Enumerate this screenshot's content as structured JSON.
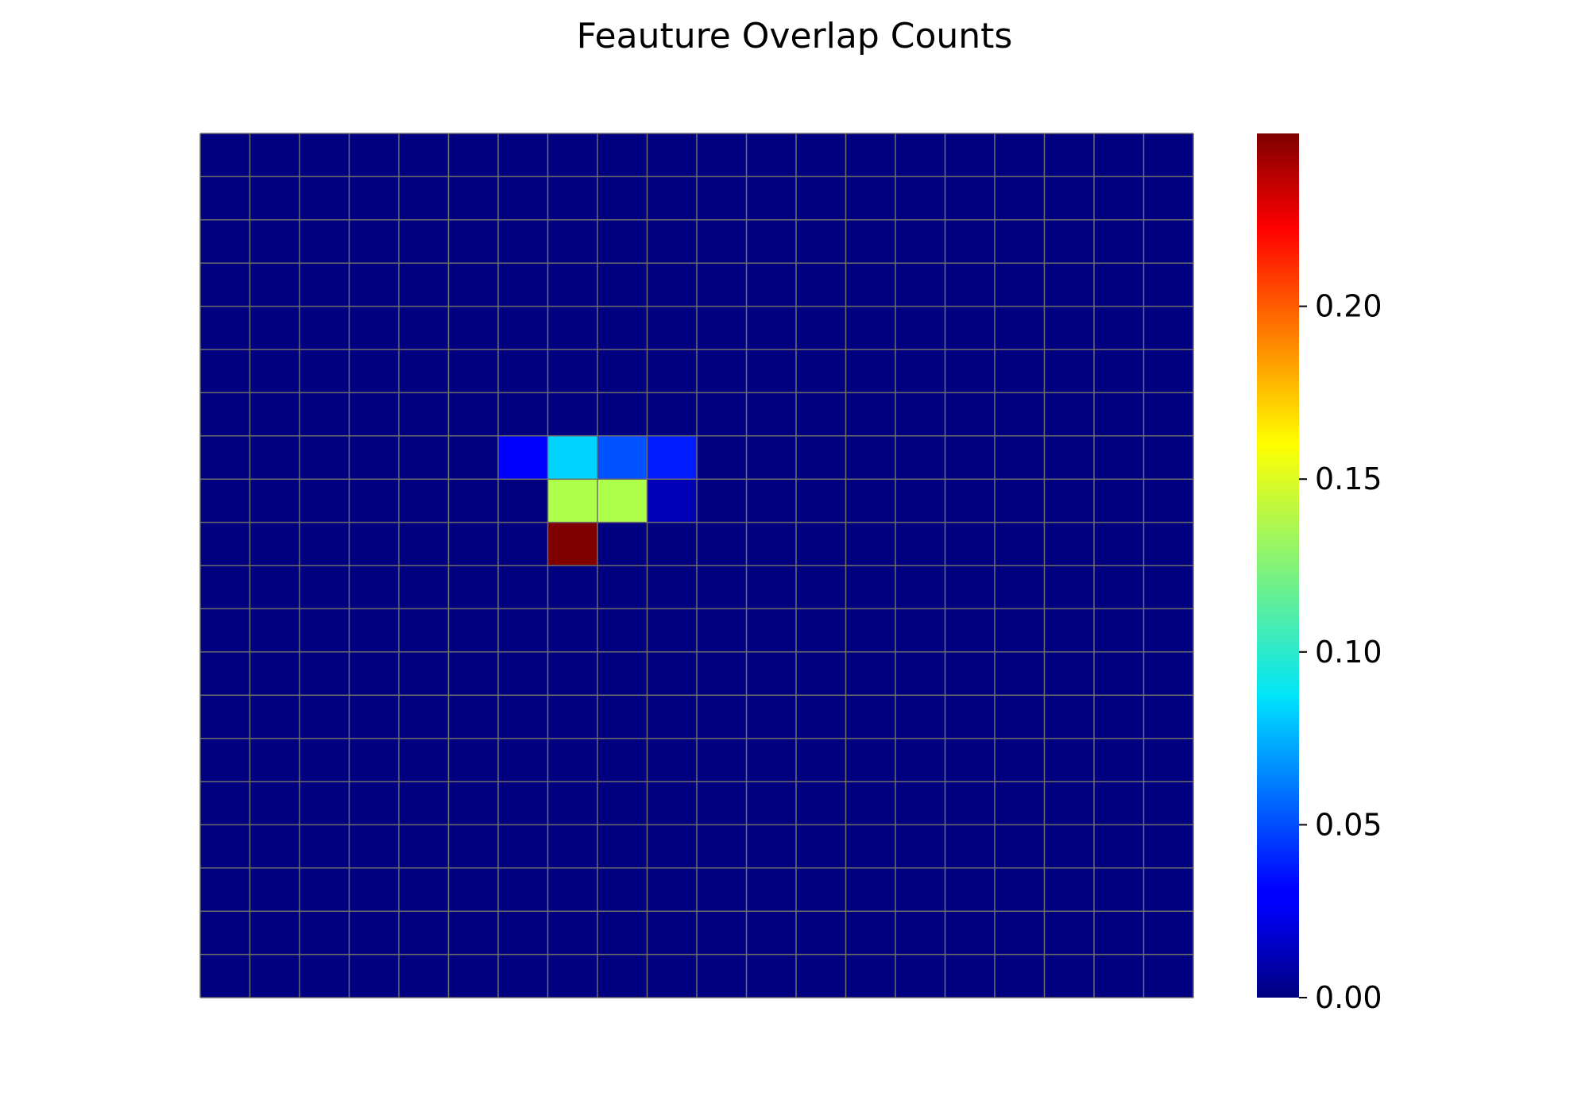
{
  "chart_data": {
    "type": "heatmap",
    "title": "Feauture Overlap Counts",
    "xlabel": "",
    "ylabel": "",
    "n_rows": 20,
    "n_cols": 20,
    "colormap": "jet",
    "vmin": 0.0,
    "vmax": 0.25,
    "grid": true,
    "grid_color": "#6e6e6e",
    "cells": [
      {
        "row": 7,
        "col": 6,
        "value": 0.028
      },
      {
        "row": 7,
        "col": 7,
        "value": 0.083
      },
      {
        "row": 7,
        "col": 8,
        "value": 0.051
      },
      {
        "row": 7,
        "col": 9,
        "value": 0.038
      },
      {
        "row": 8,
        "col": 7,
        "value": 0.14
      },
      {
        "row": 8,
        "col": 8,
        "value": 0.14
      },
      {
        "row": 8,
        "col": 9,
        "value": 0.012
      },
      {
        "row": 9,
        "col": 7,
        "value": 0.25
      }
    ],
    "colorbar": {
      "ticks": [
        0.0,
        0.05,
        0.1,
        0.15,
        0.2
      ],
      "tick_labels": [
        "0.00",
        "0.05",
        "0.10",
        "0.15",
        "0.20"
      ],
      "placement": "right"
    }
  }
}
